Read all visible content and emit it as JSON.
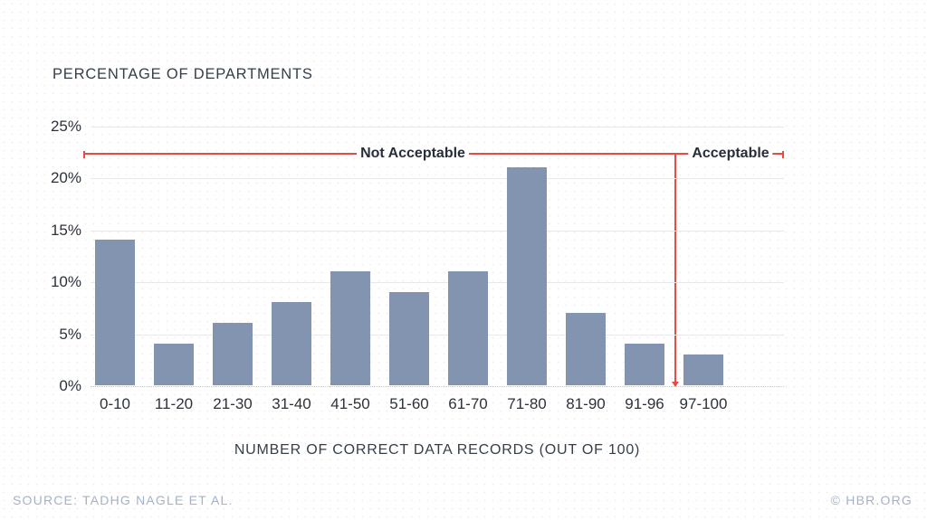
{
  "chart_data": {
    "type": "bar",
    "title": "PERCENTAGE OF DEPARTMENTS",
    "xlabel": "NUMBER OF CORRECT DATA RECORDS (OUT OF 100)",
    "categories": [
      "0-10",
      "11-20",
      "21-30",
      "31-40",
      "41-50",
      "51-60",
      "61-70",
      "71-80",
      "81-90",
      "91-96",
      "97-100"
    ],
    "values": [
      14,
      4,
      6,
      8,
      11,
      9,
      11,
      21,
      7,
      4,
      3
    ],
    "y_ticks": [
      "25%",
      "20%",
      "15%",
      "10%",
      "5%",
      "0%"
    ],
    "ylim": [
      0,
      25
    ],
    "grid": true,
    "legend": "none",
    "bar_color": "#8294b0",
    "annotations": {
      "line_value": 22.5,
      "not_acceptable_label": "Not Acceptable",
      "acceptable_label": "Acceptable",
      "divider_after_category": "91-96",
      "color": "#e64b45"
    }
  },
  "footer": {
    "source": "SOURCE: TADHG NAGLE ET AL.",
    "copyright": "© HBR.ORG"
  }
}
